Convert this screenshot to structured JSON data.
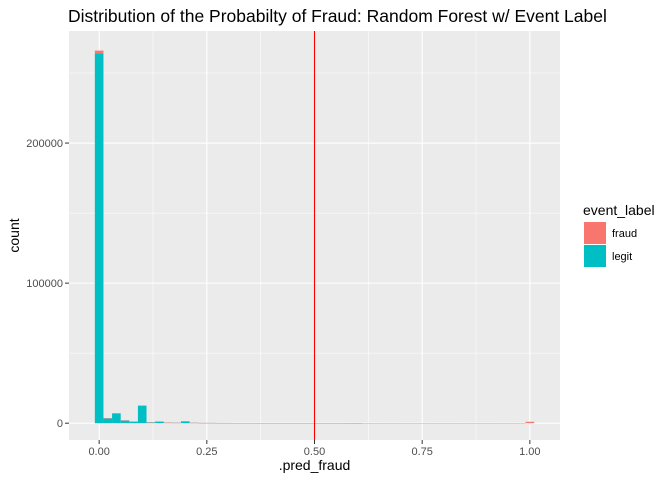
{
  "chart_data": {
    "type": "bar",
    "subtype": "stacked-histogram",
    "title": "Distribution of the Probabilty of Fraud: Random Forest w/ Event Label",
    "xlabel": ".pred_fraud",
    "ylabel": "count",
    "xlim": [
      -0.07,
      1.07
    ],
    "ylim": [
      -12000,
      280000
    ],
    "x_ticks": [
      0.0,
      0.25,
      0.5,
      0.75,
      1.0
    ],
    "x_tick_labels": [
      "0.00",
      "0.25",
      "0.50",
      "0.75",
      "1.00"
    ],
    "y_ticks": [
      0,
      100000,
      200000
    ],
    "y_tick_labels": [
      "0",
      "100000",
      "200000"
    ],
    "bin_width": 0.02,
    "bin_centers": [
      0.0,
      0.02,
      0.04,
      0.06,
      0.08,
      0.1,
      0.12,
      0.14,
      0.16,
      0.18,
      0.2,
      0.22,
      0.24,
      0.26,
      0.28,
      0.3,
      0.32,
      0.34,
      0.36,
      0.38,
      0.4,
      0.42,
      0.44,
      0.46,
      0.48,
      0.5,
      0.52,
      0.54,
      0.56,
      0.58,
      0.6,
      0.62,
      0.64,
      0.66,
      0.68,
      0.7,
      0.72,
      0.74,
      0.76,
      0.78,
      0.8,
      0.82,
      0.84,
      0.86,
      0.88,
      0.9,
      0.92,
      0.94,
      0.96,
      0.98,
      1.0
    ],
    "series": [
      {
        "name": "legit",
        "color": "#00BFC4",
        "values": [
          264000,
          3500,
          7000,
          2000,
          1200,
          12500,
          600,
          1200,
          400,
          300,
          1300,
          300,
          200,
          200,
          150,
          150,
          100,
          100,
          100,
          100,
          100,
          80,
          80,
          80,
          80,
          80,
          60,
          60,
          60,
          40,
          30,
          0,
          0,
          0,
          0,
          0,
          0,
          0,
          0,
          0,
          0,
          0,
          0,
          0,
          0,
          0,
          0,
          0,
          0,
          0,
          0
        ]
      },
      {
        "name": "fraud",
        "color": "#F8766D",
        "values": [
          2000,
          20,
          50,
          20,
          10,
          150,
          10,
          20,
          10,
          10,
          30,
          20,
          20,
          20,
          20,
          20,
          20,
          20,
          20,
          20,
          20,
          20,
          20,
          20,
          20,
          20,
          20,
          20,
          20,
          20,
          20,
          60,
          60,
          60,
          60,
          60,
          60,
          60,
          60,
          60,
          60,
          60,
          60,
          60,
          60,
          60,
          60,
          60,
          60,
          60,
          1000
        ]
      }
    ],
    "vline": {
      "x": 0.5,
      "color": "#FF0000"
    },
    "stack_order": [
      "legit",
      "fraud"
    ],
    "legend": {
      "title": "event_label",
      "position": "right",
      "items": [
        {
          "label": "fraud",
          "color": "#F8766D"
        },
        {
          "label": "legit",
          "color": "#00BFC4"
        }
      ]
    },
    "grid": true,
    "panel_background": "#EBEBEB",
    "grid_color": "#FFFFFF"
  }
}
